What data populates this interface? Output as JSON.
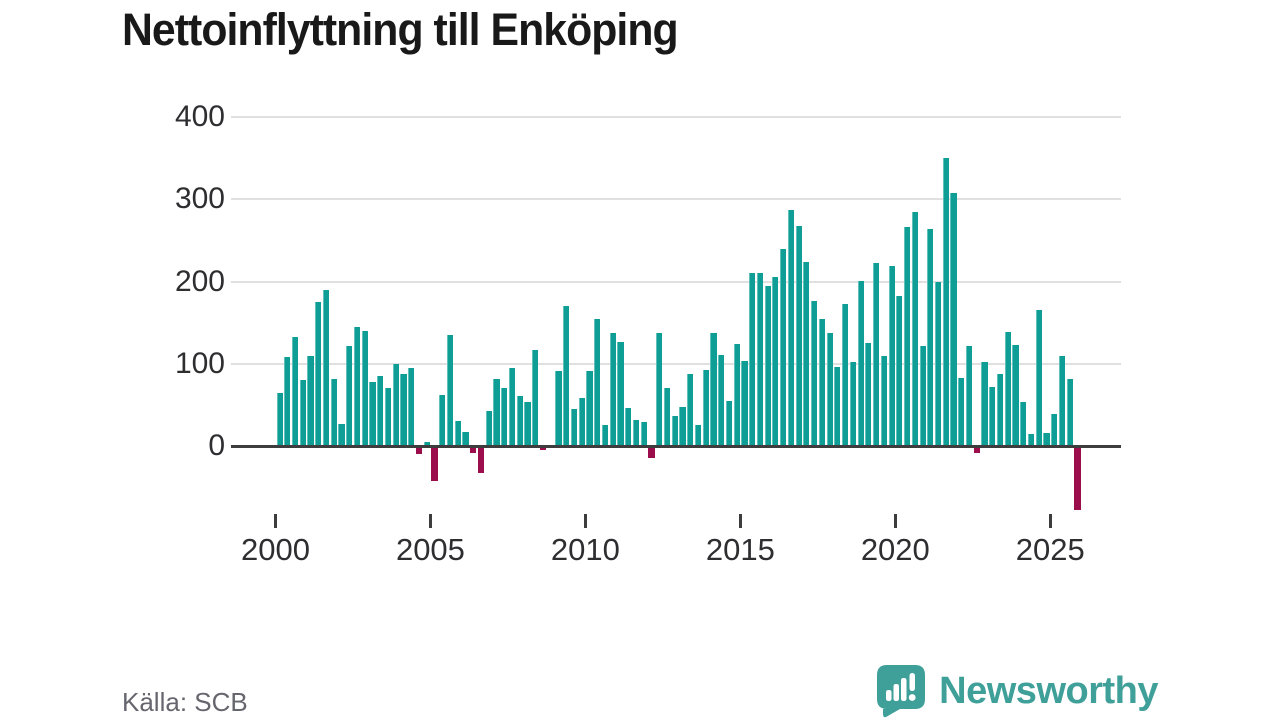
{
  "title": "Nettoinflyttning till Enköping",
  "source": "Källa: SCB",
  "logo": {
    "text": "Newsworthy"
  },
  "colors": {
    "positive_bar": "#0f9e96",
    "negative_bar": "#9c0d4c",
    "axis": "#3d3d3d",
    "grid": "#e0e0e0",
    "title_text": "#191919",
    "tick_text": "#2e2e31",
    "source_text": "#66666e",
    "brand": "#3f9f99"
  },
  "y_axis": {
    "ticks": [
      0,
      100,
      200,
      300,
      400
    ]
  },
  "x_axis": {
    "ticks": [
      2000,
      2005,
      2010,
      2015,
      2020,
      2025
    ]
  },
  "chart_data": {
    "type": "bar",
    "title": "Nettoinflyttning till Enköping",
    "series_name": "Nettoinflyttning per kvartal",
    "frequency": "quarterly",
    "xlabel": "",
    "ylabel": "",
    "ylim": [
      -90,
      400
    ],
    "grid": "horizontal",
    "legend": "none",
    "years": [
      {
        "year": 2000,
        "values": [
          64,
          108,
          133,
          80
        ]
      },
      {
        "year": 2001,
        "values": [
          109,
          175,
          190,
          82
        ]
      },
      {
        "year": 2002,
        "values": [
          27,
          122,
          145,
          140
        ]
      },
      {
        "year": 2003,
        "values": [
          78,
          85,
          71,
          100
        ]
      },
      {
        "year": 2004,
        "values": [
          87,
          95,
          -10,
          5
        ]
      },
      {
        "year": 2005,
        "values": [
          -42,
          62,
          135,
          30
        ]
      },
      {
        "year": 2006,
        "values": [
          17,
          -9,
          -33,
          43
        ]
      },
      {
        "year": 2007,
        "values": [
          81,
          70,
          95,
          61
        ]
      },
      {
        "year": 2008,
        "values": [
          54,
          117,
          -5,
          0
        ]
      },
      {
        "year": 2009,
        "values": [
          91,
          170,
          45,
          58
        ]
      },
      {
        "year": 2010,
        "values": [
          91,
          155,
          25,
          137
        ]
      },
      {
        "year": 2011,
        "values": [
          127,
          46,
          32,
          29
        ]
      },
      {
        "year": 2012,
        "values": [
          -14,
          137,
          70,
          36
        ]
      },
      {
        "year": 2013,
        "values": [
          47,
          88,
          25,
          92
        ]
      },
      {
        "year": 2014,
        "values": [
          137,
          111,
          55,
          124
        ]
      },
      {
        "year": 2015,
        "values": [
          104,
          211,
          210,
          195
        ]
      },
      {
        "year": 2016,
        "values": [
          205,
          240,
          287,
          268
        ]
      },
      {
        "year": 2017,
        "values": [
          224,
          177,
          154,
          138
        ]
      },
      {
        "year": 2018,
        "values": [
          96,
          173,
          102,
          201
        ]
      },
      {
        "year": 2019,
        "values": [
          125,
          223,
          110,
          219
        ]
      },
      {
        "year": 2020,
        "values": [
          183,
          266,
          285,
          122
        ]
      },
      {
        "year": 2021,
        "values": [
          264,
          199,
          350,
          308
        ]
      },
      {
        "year": 2022,
        "values": [
          83,
          122,
          -9,
          102
        ]
      },
      {
        "year": 2023,
        "values": [
          72,
          87,
          139,
          123
        ]
      },
      {
        "year": 2024,
        "values": [
          53,
          14,
          166,
          16
        ]
      },
      {
        "year": 2025,
        "values": [
          39,
          110,
          82,
          -78
        ]
      }
    ]
  }
}
